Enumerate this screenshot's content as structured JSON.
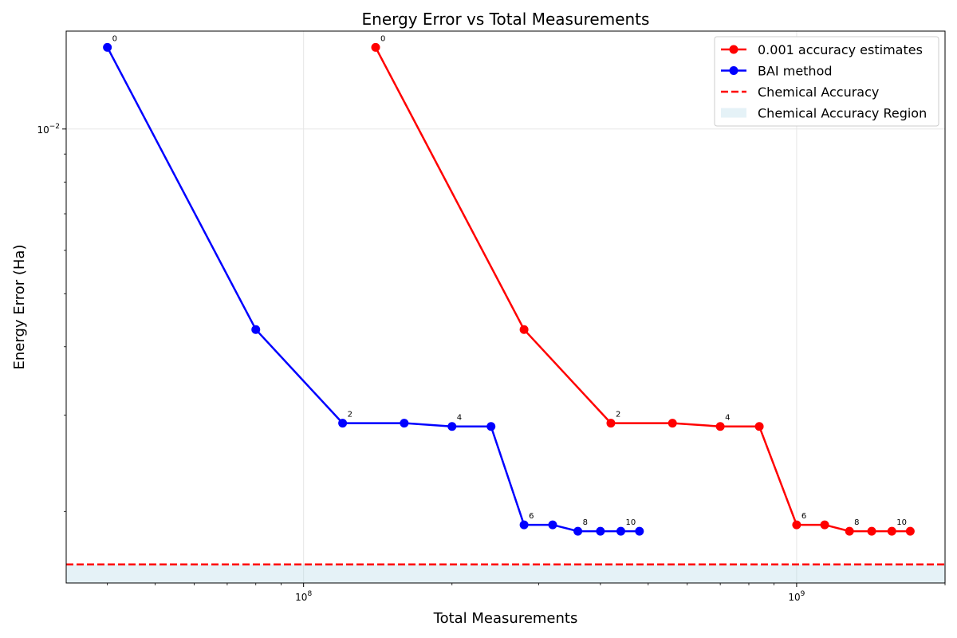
{
  "chart_data": {
    "type": "line",
    "title": "Energy Error vs Total Measurements",
    "xlabel": "Total Measurements",
    "ylabel": "Energy Error (Ha)",
    "xscale": "log",
    "yscale": "log",
    "xlim": [
      33000000,
      2000000000
    ],
    "ylim": [
      0.00148,
      0.0151
    ],
    "grid": true,
    "legend_position": "top-right",
    "x_ticks": [
      {
        "value": 100000000,
        "base": "10",
        "exp": "8"
      },
      {
        "value": 1000000000,
        "base": "10",
        "exp": "9"
      }
    ],
    "y_ticks": [
      {
        "value": 0.01,
        "base": "10",
        "exp": "−2"
      }
    ],
    "series": [
      {
        "name": "0.001 accuracy estimates",
        "color": "#ff0000",
        "style": "solid-marker",
        "x": [
          140000000,
          280000000,
          420000000,
          560000000,
          700000000,
          840000000,
          1000000000,
          1140000000,
          1280000000,
          1420000000,
          1560000000,
          1700000000
        ],
        "y": [
          0.0141,
          0.0043,
          0.0029,
          0.0029,
          0.00286,
          0.00286,
          0.00189,
          0.00189,
          0.00184,
          0.00184,
          0.00184,
          0.00184
        ],
        "labels": [
          "0",
          "",
          "2",
          "",
          "4",
          "",
          "6",
          "",
          "8",
          "",
          "10",
          ""
        ]
      },
      {
        "name": "BAI method",
        "color": "#0000ff",
        "style": "solid-marker",
        "x": [
          40000000,
          80000000,
          120000000,
          160000000,
          200000000,
          240000000,
          280000000,
          320000000,
          360000000,
          400000000,
          440000000,
          480000000
        ],
        "y": [
          0.0141,
          0.0043,
          0.0029,
          0.0029,
          0.00286,
          0.00286,
          0.00189,
          0.00189,
          0.00184,
          0.00184,
          0.00184,
          0.00184
        ],
        "labels": [
          "0",
          "",
          "2",
          "",
          "4",
          "",
          "6",
          "",
          "8",
          "",
          "10",
          ""
        ]
      },
      {
        "name": "Chemical Accuracy",
        "color": "#ff0000",
        "style": "dashed",
        "y": 0.0016
      },
      {
        "name": "Chemical Accuracy Region",
        "color": "#add8e6",
        "style": "band",
        "y_range": [
          0,
          0.0016
        ]
      }
    ]
  }
}
